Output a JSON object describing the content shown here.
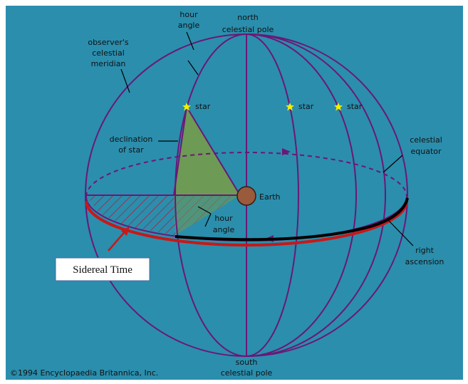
{
  "labels": {
    "hour_angle_top": [
      "hour",
      "angle"
    ],
    "north_pole": [
      "north",
      "celestial pole"
    ],
    "meridian": [
      "observer's",
      "celestial",
      "meridian"
    ],
    "stars": [
      "star",
      "star",
      "star"
    ],
    "declination": [
      "declination",
      "of star"
    ],
    "equator": [
      "celestial",
      "equator"
    ],
    "earth": "Earth",
    "hour_angle_bottom": [
      "hour",
      "angle"
    ],
    "right_ascension": [
      "right",
      "ascension"
    ],
    "south_pole": [
      "south",
      "celestial pole"
    ],
    "sidereal_time": "Sidereal Time",
    "copyright": "©1994 Encyclopaedia Britannica, Inc."
  }
}
